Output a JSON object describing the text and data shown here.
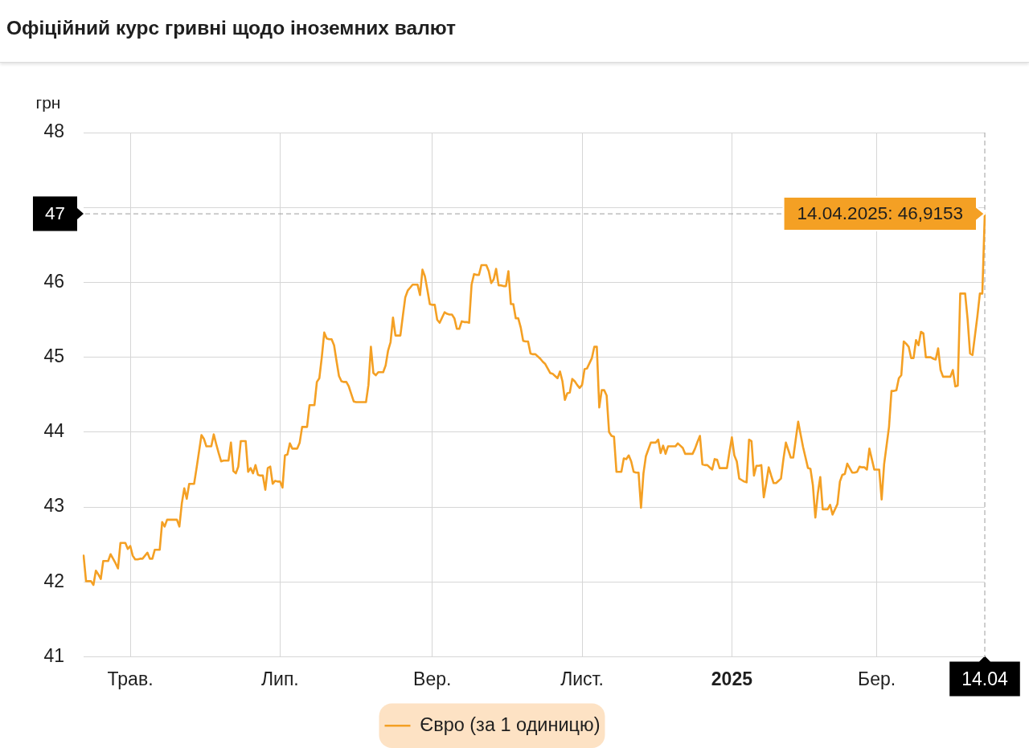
{
  "chart_data": {
    "type": "line",
    "title": "Офіційний курс гривні щодо іноземних валют",
    "ylabel": "грн",
    "categories": [
      null,
      null,
      null,
      null,
      null,
      null,
      null,
      null,
      null,
      null,
      null,
      null,
      null,
      null,
      null,
      null,
      null,
      null,
      null,
      "Трав.",
      null,
      null,
      null,
      null,
      null,
      null,
      null,
      null,
      null,
      null,
      null,
      null,
      null,
      null,
      null,
      null,
      null,
      null,
      null,
      null,
      null,
      null,
      null,
      null,
      null,
      null,
      null,
      null,
      null,
      null,
      null,
      null,
      null,
      null,
      null,
      null,
      null,
      null,
      null,
      null,
      null,
      null,
      null,
      null,
      null,
      null,
      null,
      null,
      null,
      null,
      null,
      null,
      null,
      null,
      null,
      null,
      null,
      null,
      null,
      null,
      "Лип.",
      null,
      null,
      null,
      null,
      null,
      null,
      null,
      null,
      null,
      null,
      null,
      null,
      null,
      null,
      null,
      null,
      null,
      null,
      null,
      null,
      null,
      null,
      null,
      null,
      null,
      null,
      null,
      null,
      null,
      null,
      null,
      null,
      null,
      null,
      null,
      null,
      null,
      null,
      null,
      null,
      null,
      null,
      null,
      null,
      null,
      null,
      null,
      null,
      null,
      null,
      null,
      null,
      null,
      null,
      null,
      null,
      null,
      null,
      null,
      null,
      null,
      "Вер.",
      null,
      null,
      null,
      null,
      null,
      null,
      null,
      null,
      null,
      null,
      null,
      null,
      null,
      null,
      null,
      null,
      null,
      null,
      null,
      null,
      null,
      null,
      null,
      null,
      null,
      null,
      null,
      null,
      null,
      null,
      null,
      null,
      null,
      null,
      null,
      null,
      null,
      null,
      null,
      null,
      null,
      null,
      null,
      null,
      null,
      null,
      null,
      null,
      null,
      null,
      null,
      null,
      null,
      null,
      null,
      null,
      null,
      null,
      null,
      null,
      "Лист.",
      null,
      null,
      null,
      null,
      null,
      null,
      null,
      null,
      null,
      null,
      null,
      null,
      null,
      null,
      null,
      null,
      null,
      null,
      null,
      null,
      null,
      null,
      null,
      null,
      null,
      null,
      null,
      null,
      null,
      null,
      null,
      null,
      null,
      null,
      null,
      null,
      null,
      null,
      null,
      null,
      null,
      null,
      null,
      null,
      null,
      null,
      null,
      null,
      null,
      null,
      null,
      null,
      null,
      null,
      null,
      null,
      null,
      null,
      null,
      null,
      "2025",
      null,
      null,
      null,
      null,
      null,
      null,
      null,
      null,
      null,
      null,
      null,
      null,
      null,
      null,
      null,
      null,
      null,
      null,
      null,
      null,
      null,
      null,
      null,
      null,
      null,
      null,
      null,
      null,
      null,
      null,
      null,
      null,
      null,
      null,
      null,
      null,
      null,
      null,
      null,
      null,
      null,
      null,
      null,
      null,
      null,
      null,
      null,
      null,
      null,
      null,
      null,
      null,
      null,
      null,
      null,
      null,
      null,
      null,
      "Бер.",
      null,
      null,
      null,
      null,
      null,
      null,
      null,
      null,
      null,
      null,
      null,
      null,
      null,
      null,
      null,
      null,
      null,
      null,
      null,
      null,
      null,
      null,
      null,
      null,
      null,
      null,
      null,
      null,
      null,
      null,
      null,
      null,
      null,
      null,
      null,
      null,
      null,
      null,
      null,
      null,
      null,
      null,
      null,
      "14.04"
    ],
    "ylim": [
      41,
      48
    ],
    "yticks": [
      41,
      42,
      43,
      44,
      45,
      46,
      {
        "value": 47,
        "label": null
      },
      48
    ],
    "grid": true,
    "legend": "bottom",
    "marker": "none",
    "line_style": "solid",
    "series": [
      {
        "name": "Євро (за 1 одиницю)",
        "color": "#f4a024",
        "values": [
          42.35,
          42.01,
          42.01,
          42.01,
          41.96,
          42.15,
          42.1,
          42.04,
          42.28,
          42.28,
          42.28,
          42.37,
          42.31,
          42.25,
          42.18,
          42.52,
          42.52,
          42.52,
          42.44,
          42.48,
          42.35,
          42.3,
          42.3,
          42.31,
          42.31,
          42.35,
          42.39,
          42.31,
          42.31,
          42.43,
          42.43,
          42.43,
          42.8,
          42.74,
          42.83,
          42.83,
          42.83,
          42.83,
          42.83,
          42.74,
          43.05,
          43.25,
          43.11,
          43.31,
          43.31,
          43.31,
          43.52,
          43.74,
          43.96,
          43.91,
          43.81,
          43.81,
          43.81,
          43.97,
          43.84,
          43.72,
          43.61,
          43.62,
          43.62,
          43.62,
          43.86,
          43.48,
          43.45,
          43.54,
          43.88,
          43.88,
          43.88,
          43.47,
          43.52,
          43.45,
          43.56,
          43.43,
          43.42,
          43.42,
          43.23,
          43.52,
          43.54,
          43.31,
          43.35,
          43.34,
          43.34,
          43.26,
          43.69,
          43.7,
          43.85,
          43.78,
          43.78,
          43.78,
          43.86,
          44.07,
          44.07,
          44.07,
          44.36,
          44.36,
          44.36,
          44.67,
          44.72,
          45.0,
          45.33,
          45.25,
          45.24,
          45.24,
          45.16,
          44.95,
          44.75,
          44.68,
          44.67,
          44.67,
          44.61,
          44.51,
          44.41,
          44.4,
          44.4,
          44.4,
          44.4,
          44.4,
          44.63,
          45.14,
          44.79,
          44.76,
          44.8,
          44.8,
          44.8,
          44.89,
          45.09,
          45.2,
          45.53,
          45.29,
          45.29,
          45.29,
          45.55,
          45.8,
          45.89,
          45.93,
          45.97,
          45.97,
          45.97,
          45.83,
          46.17,
          46.08,
          45.9,
          45.71,
          45.7,
          45.7,
          45.5,
          45.46,
          45.53,
          45.6,
          45.58,
          45.57,
          45.57,
          45.52,
          45.38,
          45.38,
          45.48,
          45.47,
          45.47,
          45.46,
          45.97,
          46.11,
          46.1,
          46.1,
          46.23,
          46.23,
          46.23,
          46.15,
          45.99,
          46.04,
          46.18,
          45.96,
          45.96,
          45.95,
          45.95,
          46.15,
          45.71,
          45.71,
          45.52,
          45.52,
          45.4,
          45.22,
          45.21,
          45.21,
          45.05,
          45.04,
          45.04,
          45.01,
          44.98,
          44.94,
          44.91,
          44.85,
          44.79,
          44.78,
          44.75,
          44.72,
          44.81,
          44.68,
          44.43,
          44.52,
          44.53,
          44.71,
          44.68,
          44.63,
          44.59,
          44.63,
          44.84,
          44.85,
          44.92,
          44.99,
          45.14,
          45.14,
          44.33,
          44.56,
          44.56,
          44.49,
          44.0,
          43.95,
          43.94,
          43.47,
          43.47,
          43.47,
          43.65,
          43.64,
          43.69,
          43.61,
          43.47,
          43.46,
          43.46,
          42.99,
          43.45,
          43.68,
          43.77,
          43.86,
          43.86,
          43.86,
          43.9,
          43.72,
          43.82,
          43.71,
          43.81,
          43.81,
          43.81,
          43.81,
          43.85,
          43.82,
          43.79,
          43.71,
          43.71,
          43.71,
          43.71,
          43.78,
          43.87,
          43.95,
          43.57,
          43.56,
          43.56,
          43.53,
          43.5,
          43.64,
          43.63,
          43.52,
          43.52,
          43.52,
          43.52,
          43.73,
          43.93,
          43.69,
          43.61,
          43.38,
          43.36,
          43.34,
          43.33,
          43.9,
          43.88,
          43.42,
          43.55,
          43.55,
          43.56,
          43.13,
          43.32,
          43.53,
          43.42,
          43.32,
          43.32,
          43.35,
          43.38,
          43.64,
          43.86,
          43.76,
          43.66,
          43.66,
          43.9,
          44.14,
          43.97,
          43.8,
          43.66,
          43.52,
          43.51,
          43.29,
          42.86,
          43.18,
          43.4,
          42.97,
          42.97,
          42.97,
          43.03,
          42.9,
          42.97,
          43.04,
          43.34,
          43.43,
          43.44,
          43.58,
          43.52,
          43.46,
          43.46,
          43.47,
          43.54,
          43.53,
          43.53,
          43.5,
          43.78,
          43.64,
          43.5,
          43.5,
          43.5,
          43.1,
          43.57,
          43.82,
          44.07,
          44.55,
          44.55,
          44.56,
          44.72,
          44.76,
          45.21,
          45.18,
          45.14,
          44.99,
          44.99,
          45.23,
          45.16,
          45.34,
          45.32,
          45.0,
          45.0,
          45.0,
          44.98,
          44.97,
          45.12,
          44.83,
          44.74,
          44.74,
          44.74,
          44.74,
          44.83,
          44.61,
          44.62,
          45.85,
          45.85,
          45.85,
          45.51,
          45.05,
          45.03,
          45.29,
          45.55,
          45.85,
          45.85,
          46.9153
        ]
      }
    ],
    "ref_lines": [
      {
        "axis": "x",
        "value": "14.04",
        "line_style": "dashed",
        "color": "#9e9e9e"
      },
      {
        "axis": "y",
        "value": 46.9153,
        "label": "47",
        "line_style": "dashed",
        "color": "#9e9e9e"
      }
    ],
    "annotations": [
      {
        "text": "14.04.2025: 46,9153",
        "x": "14.04",
        "y": 46.9153
      }
    ]
  }
}
